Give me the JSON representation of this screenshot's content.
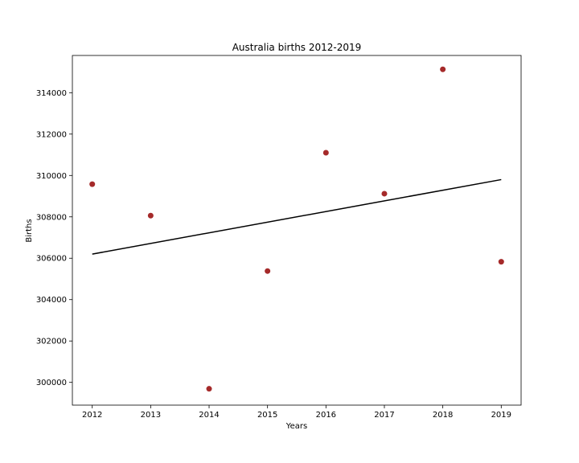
{
  "chart_data": {
    "type": "scatter",
    "title": "Australia births 2012-2019",
    "xlabel": "Years",
    "ylabel": "Births",
    "xlim": [
      2011.66,
      2019.34
    ],
    "ylim": [
      298900,
      315800
    ],
    "xticks": [
      2012,
      2013,
      2014,
      2015,
      2016,
      2017,
      2018,
      2019
    ],
    "yticks": [
      300000,
      302000,
      304000,
      306000,
      308000,
      310000,
      312000,
      314000
    ],
    "grid": false,
    "points": {
      "x": [
        2012,
        2013,
        2014,
        2015,
        2016,
        2017,
        2018,
        2019
      ],
      "y": [
        309580,
        308060,
        299690,
        305380,
        311100,
        309120,
        315130,
        305830
      ],
      "color": "#a52a2a"
    },
    "trendline": {
      "x": [
        2012,
        2019
      ],
      "y": [
        306200,
        309800
      ],
      "color": "#000000"
    }
  }
}
